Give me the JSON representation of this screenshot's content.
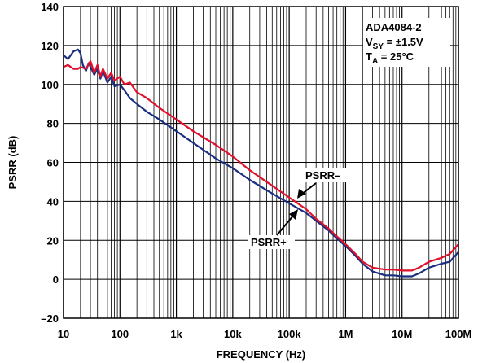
{
  "chart_data": {
    "type": "line",
    "title": "",
    "xlabel": "FREQUENCY (Hz)",
    "ylabel": "PSRR (dB)",
    "x_scale": "log",
    "xlim": [
      10,
      100000000
    ],
    "ylim": [
      -20,
      140
    ],
    "grid": true,
    "x_ticks": [
      10,
      100,
      1000,
      10000,
      100000,
      1000000,
      10000000,
      100000000
    ],
    "x_tick_labels": [
      "10",
      "100",
      "1k",
      "10k",
      "100k",
      "1M",
      "10M",
      "100M"
    ],
    "y_ticks": [
      -20,
      0,
      20,
      40,
      60,
      80,
      100,
      120,
      140
    ],
    "y_tick_labels": [
      "–20",
      "0",
      "20",
      "40",
      "60",
      "80",
      "100",
      "120",
      "140"
    ],
    "info_box": {
      "part": "ADA4084-2",
      "vsy_symbol": "V",
      "vsy_subscript": "SY",
      "vsy_value": " = ±1.5V",
      "ta_symbol": "T",
      "ta_subscript": "A",
      "ta_value": " = 25°C"
    },
    "series": [
      {
        "name": "PSRR+",
        "color": "#1a2f80",
        "x": [
          10,
          12,
          15,
          18,
          20,
          22,
          25,
          28,
          30,
          35,
          40,
          45,
          50,
          60,
          70,
          80,
          100,
          120,
          150,
          200,
          300,
          500,
          1000,
          2000,
          5000,
          10000,
          20000,
          50000,
          100000,
          200000,
          300000,
          500000,
          700000,
          1000000,
          1500000,
          2000000,
          3000000,
          5000000,
          7000000,
          10000000,
          15000000,
          20000000,
          30000000,
          50000000,
          70000000,
          100000000
        ],
        "y": [
          115,
          113,
          117,
          118,
          116,
          110,
          107,
          111,
          109,
          105,
          108,
          103,
          107,
          101,
          104,
          99,
          100,
          97,
          93,
          90,
          86,
          82,
          76,
          70,
          62,
          57,
          51,
          44,
          39,
          34,
          30,
          25,
          21,
          17,
          12,
          8,
          4,
          2,
          2,
          1.5,
          1.5,
          3,
          6,
          8,
          9,
          14
        ]
      },
      {
        "name": "PSRR–",
        "color": "#e0102c",
        "x": [
          10,
          12,
          15,
          18,
          20,
          25,
          30,
          35,
          40,
          45,
          50,
          60,
          70,
          80,
          100,
          120,
          150,
          200,
          300,
          500,
          1000,
          2000,
          5000,
          10000,
          20000,
          50000,
          100000,
          200000,
          300000,
          500000,
          700000,
          1000000,
          1500000,
          2000000,
          3000000,
          5000000,
          7000000,
          10000000,
          15000000,
          20000000,
          30000000,
          50000000,
          70000000,
          100000000
        ],
        "y": [
          109,
          110,
          108,
          108,
          109,
          108,
          112,
          106,
          110,
          104,
          108,
          103,
          106,
          102,
          104,
          100,
          101,
          96,
          93,
          88,
          82,
          76,
          69,
          63,
          56,
          48,
          42,
          36,
          31,
          26,
          22,
          18,
          13,
          9,
          6,
          5,
          5,
          4.5,
          4.5,
          6,
          9,
          11,
          13,
          18
        ]
      }
    ],
    "annotations": [
      {
        "label": "PSRR–",
        "target_series": "PSRR–"
      },
      {
        "label": "PSRR+",
        "target_series": "PSRR+"
      }
    ]
  }
}
